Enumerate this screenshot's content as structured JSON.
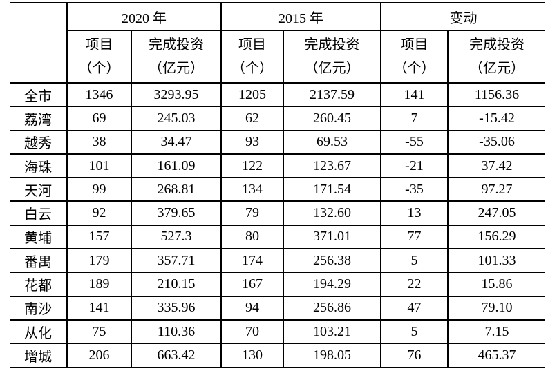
{
  "table": {
    "corner_label": "",
    "column_groups": [
      {
        "label": "2020 年"
      },
      {
        "label": "2015 年"
      },
      {
        "label": "变动"
      }
    ],
    "sub_header": {
      "projects": [
        "项目",
        "（个）"
      ],
      "investment": [
        "完成投资",
        "（亿元）"
      ]
    },
    "rows": [
      {
        "region": "全市",
        "values": [
          "1346",
          "3293.95",
          "1205",
          "2137.59",
          "141",
          "1156.36"
        ]
      },
      {
        "region": "荔湾",
        "values": [
          "69",
          "245.03",
          "62",
          "260.45",
          "7",
          "-15.42"
        ]
      },
      {
        "region": "越秀",
        "values": [
          "38",
          "34.47",
          "93",
          "69.53",
          "-55",
          "-35.06"
        ]
      },
      {
        "region": "海珠",
        "values": [
          "101",
          "161.09",
          "122",
          "123.67",
          "-21",
          "37.42"
        ]
      },
      {
        "region": "天河",
        "values": [
          "99",
          "268.81",
          "134",
          "171.54",
          "-35",
          "97.27"
        ]
      },
      {
        "region": "白云",
        "values": [
          "92",
          "379.65",
          "79",
          "132.60",
          "13",
          "247.05"
        ]
      },
      {
        "region": "黄埔",
        "values": [
          "157",
          "527.3",
          "80",
          "371.01",
          "77",
          "156.29"
        ]
      },
      {
        "region": "番禺",
        "values": [
          "179",
          "357.71",
          "174",
          "256.38",
          "5",
          "101.33"
        ]
      },
      {
        "region": "花都",
        "values": [
          "189",
          "210.15",
          "167",
          "194.29",
          "22",
          "15.86"
        ]
      },
      {
        "region": "南沙",
        "values": [
          "141",
          "335.96",
          "94",
          "256.86",
          "47",
          "79.10"
        ]
      },
      {
        "region": "从化",
        "values": [
          "75",
          "110.36",
          "70",
          "103.21",
          "5",
          "7.15"
        ]
      },
      {
        "region": "增城",
        "values": [
          "206",
          "663.42",
          "130",
          "198.05",
          "76",
          "465.37"
        ]
      }
    ]
  },
  "colors": {
    "text": "#000000",
    "border": "#000000",
    "background": "#ffffff"
  }
}
